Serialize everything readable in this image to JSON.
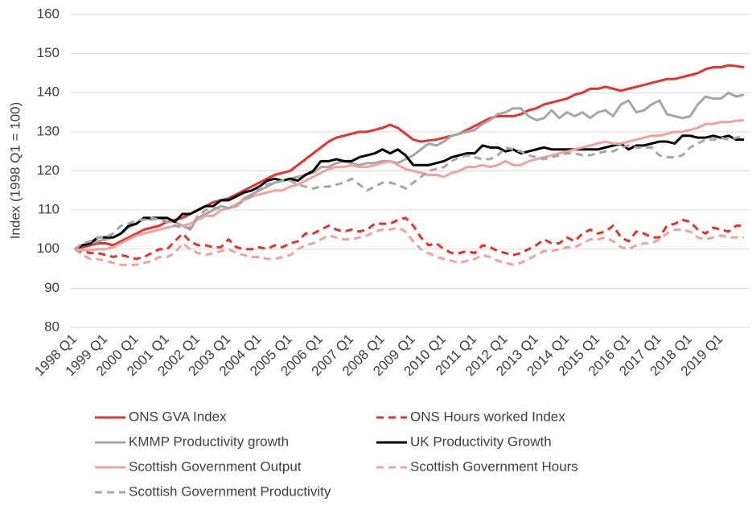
{
  "chart_data": {
    "type": "line",
    "y_label": "Index (1998 Q1 = 100)",
    "categories": [
      "1998 Q1",
      null,
      null,
      null,
      "1999 Q1",
      null,
      null,
      null,
      "2000 Q1",
      null,
      null,
      null,
      "2001 Q1",
      null,
      null,
      null,
      "2002 Q1",
      null,
      null,
      null,
      "2003 Q1",
      null,
      null,
      null,
      "2004 Q1",
      null,
      null,
      null,
      "2005 Q1",
      null,
      null,
      null,
      "2006 Q1",
      null,
      null,
      null,
      "2007 Q1",
      null,
      null,
      null,
      "2008 Q1",
      null,
      null,
      null,
      "2009 Q1",
      null,
      null,
      null,
      "2010 Q1",
      null,
      null,
      null,
      "2011 Q1",
      null,
      null,
      null,
      "2012 Q1",
      null,
      null,
      null,
      "2013 Q1",
      null,
      null,
      null,
      "2014 Q1",
      null,
      null,
      null,
      "2015 Q1",
      null,
      null,
      null,
      "2016 Q1",
      null,
      null,
      null,
      "2017 Q1",
      null,
      null,
      null,
      "2018 Q1",
      null,
      null,
      null,
      "2019 Q1",
      null,
      null,
      null
    ],
    "ylim": [
      80,
      160
    ],
    "yticks": [
      80,
      90,
      100,
      110,
      120,
      130,
      140,
      150,
      160
    ],
    "grid": true,
    "series": [
      {
        "name": "ONS GVA Index",
        "color": "#e8312a",
        "style": "solid",
        "values": [
          100,
          100.5,
          101,
          101.5,
          101.5,
          101,
          102,
          103,
          104,
          105,
          105.5,
          106,
          107,
          107.5,
          108,
          109,
          110,
          111,
          112,
          112.5,
          113,
          114,
          115,
          116,
          117,
          118,
          119,
          119.5,
          120,
          121.5,
          123,
          124.5,
          126,
          127.5,
          128.5,
          129,
          129.5,
          130,
          130,
          130.5,
          131,
          131.8,
          131,
          129.5,
          128,
          127.5,
          127.8,
          128,
          128.5,
          129,
          129.5,
          130.5,
          131.5,
          132.5,
          133.5,
          134,
          134,
          134,
          134.5,
          135.5,
          136,
          137,
          137.5,
          138,
          138.5,
          139.5,
          140,
          141,
          141,
          141.5,
          141,
          140.5,
          141,
          141.5,
          142,
          142.5,
          143,
          143.5,
          143.5,
          144,
          144.5,
          145,
          146,
          146.5,
          146.5,
          147,
          146.8,
          146.5
        ]
      },
      {
        "name": "ONS Hours worked Index",
        "color": "#e8312a",
        "style": "dashed",
        "values": [
          100,
          99.5,
          99,
          99,
          98.5,
          98,
          98.5,
          98,
          97.5,
          98,
          99,
          100,
          100,
          102,
          104,
          102,
          101,
          101,
          100.5,
          100.5,
          102.5,
          100.5,
          100,
          100,
          100.5,
          100,
          101,
          100.5,
          101.5,
          102,
          104,
          104,
          105,
          106,
          105,
          104.5,
          105,
          104.5,
          105,
          106.5,
          106.5,
          106.5,
          107.5,
          108,
          106,
          103,
          101,
          101.5,
          100,
          99,
          99,
          99.5,
          99,
          101,
          100.5,
          99.5,
          99,
          98.5,
          99,
          100,
          101,
          102.5,
          101.5,
          101.5,
          103,
          102,
          104,
          105,
          104,
          104.5,
          106,
          103,
          102,
          104.5,
          104,
          103,
          103,
          106,
          106.5,
          107.5,
          107,
          105,
          104,
          105.5,
          105,
          104.5,
          106,
          106
        ]
      },
      {
        "name": "KMMP Productivity growth",
        "color": "#a6a6a6",
        "style": "solid",
        "values": [
          100,
          101,
          101.5,
          102,
          102.5,
          103,
          104,
          105.5,
          106.5,
          108,
          107.5,
          108,
          107,
          107,
          106,
          105,
          108,
          109,
          110,
          111,
          110.5,
          111,
          113,
          114,
          115,
          116,
          117,
          117.5,
          118,
          118.5,
          119,
          119.5,
          121,
          121,
          122,
          122.5,
          122,
          121.5,
          122,
          122,
          122.5,
          122.5,
          122,
          123,
          124,
          125.5,
          127,
          126.5,
          127.5,
          129,
          129.5,
          130,
          130.5,
          132,
          133,
          134.5,
          135,
          136,
          136,
          134,
          133,
          133.5,
          135.5,
          133.5,
          135,
          134,
          135,
          133.5,
          135,
          135.5,
          134,
          137,
          138,
          135,
          135.5,
          137,
          138,
          134.5,
          134,
          133.5,
          134,
          137,
          139,
          138.5,
          138.5,
          140,
          139,
          139.5
        ]
      },
      {
        "name": "UK Productivity Growth",
        "color": "#000000",
        "style": "solid",
        "values": [
          100,
          101,
          101.5,
          103,
          103,
          103,
          104,
          106,
          106.5,
          108,
          108,
          108,
          108,
          107,
          109,
          109,
          110,
          111,
          111,
          112.5,
          112.5,
          113.5,
          114.5,
          115,
          116,
          117.5,
          118,
          117.5,
          118,
          117.5,
          119,
          120,
          122.5,
          122.5,
          123,
          122.5,
          122.5,
          123.5,
          124,
          124.5,
          125.5,
          124.5,
          125.5,
          124,
          121.5,
          121.5,
          121.5,
          122,
          122.5,
          123.5,
          124,
          124.5,
          124.5,
          126.5,
          126,
          126,
          125,
          125.5,
          124.5,
          125,
          125.5,
          126,
          125.5,
          125.5,
          125.5,
          125.5,
          125.5,
          125.5,
          125.5,
          126,
          126.5,
          127,
          125.5,
          126.5,
          126.5,
          127,
          127.5,
          127.5,
          127,
          129,
          129,
          128.5,
          128.5,
          129,
          128.5,
          129,
          128,
          128
        ]
      },
      {
        "name": "Scottish Government Output",
        "color": "#f4a09b",
        "style": "solid",
        "values": [
          100,
          99.8,
          99.8,
          100,
          100,
          100.5,
          101.5,
          102.5,
          103.5,
          104,
          104.5,
          105,
          105.5,
          106,
          106,
          106.5,
          107.5,
          108.5,
          108.5,
          110,
          110.5,
          111.5,
          112.5,
          113.5,
          114,
          114.5,
          115,
          115,
          116,
          116.5,
          117.5,
          118.5,
          119.5,
          120.5,
          121,
          121,
          121.5,
          121,
          121,
          121.5,
          122,
          122.5,
          121.5,
          120.5,
          120,
          119.5,
          119,
          119,
          118.5,
          119.5,
          120,
          121,
          121,
          121.5,
          121,
          121.5,
          122.5,
          121.5,
          121.5,
          122.5,
          123,
          123.5,
          124,
          124.5,
          125,
          125.5,
          126,
          126.5,
          127,
          127.5,
          127,
          127,
          127.5,
          128,
          128.5,
          129,
          129,
          129.5,
          130,
          130,
          130.5,
          131,
          132,
          132,
          132.5,
          132.5,
          132.8,
          133
        ]
      },
      {
        "name": "Scottish Government Hours",
        "color": "#f4a09b",
        "style": "dashed",
        "values": [
          100,
          98.5,
          97.5,
          97.5,
          97,
          96.5,
          96,
          96,
          96,
          96.5,
          97,
          98,
          98,
          99,
          101.5,
          100,
          99,
          98.5,
          99,
          99.5,
          100,
          99,
          98.5,
          98,
          98,
          97.5,
          97.5,
          98,
          98.5,
          100,
          101,
          101.5,
          102.5,
          103.5,
          103,
          102.5,
          102.5,
          103,
          103.5,
          104.5,
          105,
          105,
          105.5,
          104.5,
          102,
          100,
          99,
          98,
          97.5,
          97,
          96.5,
          97,
          97.5,
          98.5,
          98,
          97,
          96.5,
          96,
          96.5,
          97.5,
          98.5,
          99.5,
          99.5,
          100,
          100.5,
          100.5,
          101.5,
          102.5,
          102.5,
          103,
          102,
          100.5,
          100,
          101,
          101.5,
          101.5,
          102.5,
          104,
          105,
          105,
          104.5,
          103,
          102.5,
          103,
          103.5,
          103,
          103,
          103
        ]
      },
      {
        "name": "Scottish Government Productivity",
        "color": "#a6a6a6",
        "style": "dashed",
        "values": [
          100,
          101.5,
          102,
          103,
          103,
          104,
          106,
          106.5,
          107.5,
          107.5,
          108,
          107.5,
          107,
          106,
          105.5,
          105.5,
          108.5,
          110,
          110.5,
          110.5,
          110.5,
          111,
          112.5,
          113.5,
          115.5,
          116.5,
          117,
          117.5,
          117.5,
          116.5,
          116,
          115.5,
          116,
          116,
          116.5,
          117,
          118,
          116.5,
          115,
          116,
          117,
          117,
          116.5,
          115.5,
          117,
          118.5,
          120,
          120.5,
          121,
          122.5,
          123.5,
          124,
          123.5,
          123,
          123,
          124,
          126,
          125.5,
          125,
          124,
          123.5,
          123,
          123.5,
          124,
          124.5,
          124.5,
          124,
          124,
          124.5,
          125,
          125,
          126,
          126.5,
          126,
          126,
          126,
          124,
          123.5,
          123.5,
          124,
          126,
          127,
          128,
          128,
          128.5,
          128,
          128.5,
          129
        ]
      }
    ]
  }
}
